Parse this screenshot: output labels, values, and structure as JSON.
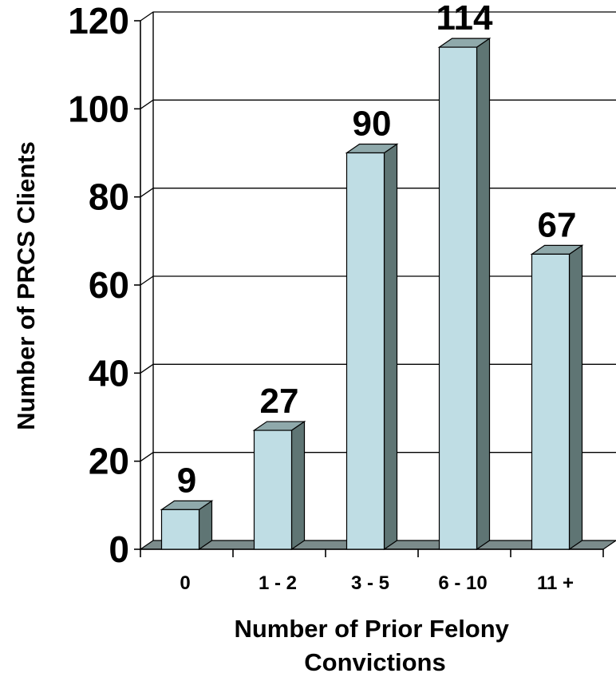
{
  "chart_data": {
    "type": "bar",
    "title": "",
    "categories": [
      "0",
      "1 - 2",
      "3 - 5",
      "6 - 10",
      "11 +"
    ],
    "values": [
      9,
      27,
      90,
      114,
      67
    ],
    "data_labels": [
      "9",
      "27",
      "90",
      "114",
      "67"
    ],
    "xlabel": [
      "Number of Prior Felony",
      "Convictions"
    ],
    "ylabel": "Number of PRCS Clients",
    "ylim": [
      0,
      120
    ],
    "yticks": [
      0,
      20,
      40,
      60,
      80,
      100,
      120
    ],
    "grid": true,
    "legend": "none",
    "style": "3d-columns",
    "colors": {
      "bar_front": "#bfdde4",
      "bar_side": "#5f7574",
      "bar_top": "#8fa9ab",
      "floor": "#7b8b8b",
      "grid": "#000000"
    }
  }
}
